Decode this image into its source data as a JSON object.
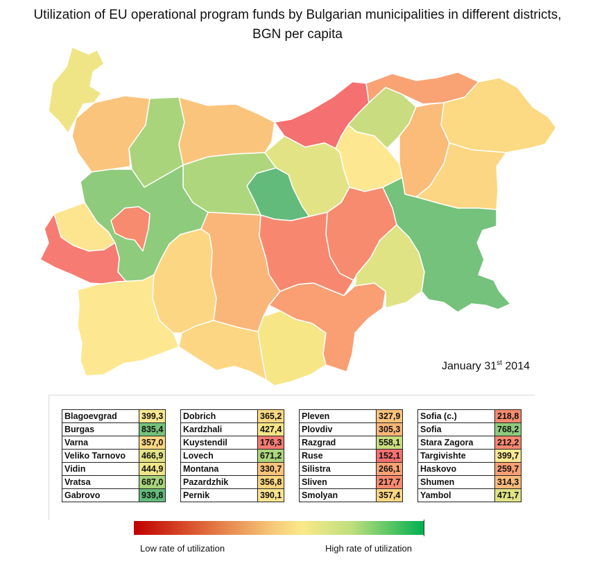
{
  "title": "Utilization of EU operational program funds by Bulgarian municipalities in different districts, BGN per capita",
  "date": {
    "text": "January 31",
    "sup": "st",
    "year": " 2014"
  },
  "legend": {
    "low": "Low rate of utilization",
    "high": "High rate of utilization",
    "colors": [
      "#c00000",
      "#e06a3c",
      "#f6c97a",
      "#fbe889",
      "#bfdf7e",
      "#00b050"
    ]
  },
  "palette": {
    "low_red": "#f07070",
    "salmon": "#f4906e",
    "orange": "#f7b07a",
    "light_orange": "#fad084",
    "yellow": "#fbe889",
    "yellow_green": "#e2e384",
    "light_green": "#b8d978",
    "green": "#86c97a",
    "dark_green": "#63bb7b"
  },
  "districts": [
    {
      "name": "Blagoevgrad",
      "value": "399,3",
      "color": "#fde891"
    },
    {
      "name": "Burgas",
      "value": "835,4",
      "color": "#74c27b"
    },
    {
      "name": "Varna",
      "value": "357,0",
      "color": "#fcd682"
    },
    {
      "name": "Veliko Tarnovo",
      "value": "466,9",
      "color": "#e2e384"
    },
    {
      "name": "Vidin",
      "value": "444,9",
      "color": "#f0e586"
    },
    {
      "name": "Vratsa",
      "value": "687,0",
      "color": "#a9d47c"
    },
    {
      "name": "Gabrovo",
      "value": "939,8",
      "color": "#63bb7b"
    },
    {
      "name": "Dobrich",
      "value": "365,2",
      "color": "#fcd983"
    },
    {
      "name": "Kardzhali",
      "value": "427,4",
      "color": "#f6e686"
    },
    {
      "name": "Kuystendil",
      "value": "176,3",
      "color": "#f67b72"
    },
    {
      "name": "Lovech",
      "value": "671,2",
      "color": "#add67d"
    },
    {
      "name": "Montana",
      "value": "330,7",
      "color": "#fbc47c"
    },
    {
      "name": "Pazardzhik",
      "value": "356,8",
      "color": "#fcd682"
    },
    {
      "name": "Pernik",
      "value": "390,1",
      "color": "#fde48f"
    },
    {
      "name": "Pleven",
      "value": "327,9",
      "color": "#fbc47c"
    },
    {
      "name": "Plovdiv",
      "value": "305,3",
      "color": "#fab678"
    },
    {
      "name": "Razgrad",
      "value": "558,1",
      "color": "#c9dd80"
    },
    {
      "name": "Ruse",
      "value": "152,1",
      "color": "#f57070"
    },
    {
      "name": "Silistra",
      "value": "266,1",
      "color": "#f9a274"
    },
    {
      "name": "Sliven",
      "value": "217,7",
      "color": "#f78b6f"
    },
    {
      "name": "Smolyan",
      "value": "357,4",
      "color": "#fcd682"
    },
    {
      "name": "Sofia (c.)",
      "value": "218,8",
      "color": "#f78b6f"
    },
    {
      "name": "Sofia",
      "value": "768,2",
      "color": "#8ecb7c"
    },
    {
      "name": "Stara Zagora",
      "value": "212,2",
      "color": "#f7886f"
    },
    {
      "name": "Targivishte",
      "value": "399,7",
      "color": "#fde891"
    },
    {
      "name": "Haskovo",
      "value": "259,7",
      "color": "#f99f73"
    },
    {
      "name": "Shumen",
      "value": "314,3",
      "color": "#fbbb79"
    },
    {
      "name": "Yambol",
      "value": "471,7",
      "color": "#dfe384"
    }
  ]
}
